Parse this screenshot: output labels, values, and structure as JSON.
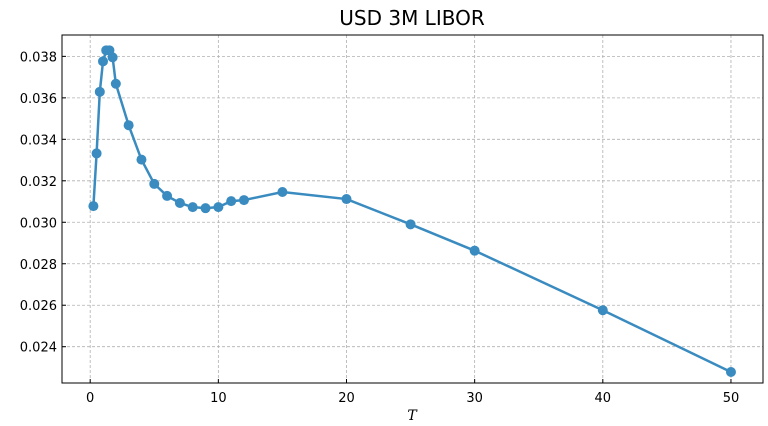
{
  "chart_data": {
    "type": "line",
    "title": "USD 3M LIBOR",
    "xlabel": "T",
    "ylabel": "",
    "xlim": [
      -2.2,
      52.5
    ],
    "ylim": [
      0.02225,
      0.03903
    ],
    "xticks": [
      0,
      10,
      20,
      30,
      40,
      50
    ],
    "yticks": [
      0.024,
      0.026,
      0.028,
      0.03,
      0.032,
      0.034,
      0.036,
      0.038
    ],
    "xtick_labels": [
      "0",
      "10",
      "20",
      "30",
      "40",
      "50"
    ],
    "ytick_labels": [
      "0.024",
      "0.026",
      "0.028",
      "0.030",
      "0.032",
      "0.034",
      "0.036",
      "0.038"
    ],
    "grid": true,
    "color": "#3a8bc0",
    "series": [
      {
        "x": [
          0.25,
          0.5,
          0.75,
          1,
          1.25,
          1.5,
          1.75,
          2,
          3,
          4,
          5,
          6,
          7,
          8,
          9,
          10,
          11,
          12,
          15,
          20,
          25,
          30,
          40,
          50
        ],
        "y": [
          0.03078,
          0.03332,
          0.03629,
          0.03776,
          0.03829,
          0.03829,
          0.03795,
          0.03668,
          0.03468,
          0.03302,
          0.03185,
          0.03127,
          0.03093,
          0.03073,
          0.03068,
          0.03073,
          0.03102,
          0.03107,
          0.03146,
          0.03112,
          0.0299,
          0.02863,
          0.02576,
          0.02278
        ]
      }
    ]
  }
}
